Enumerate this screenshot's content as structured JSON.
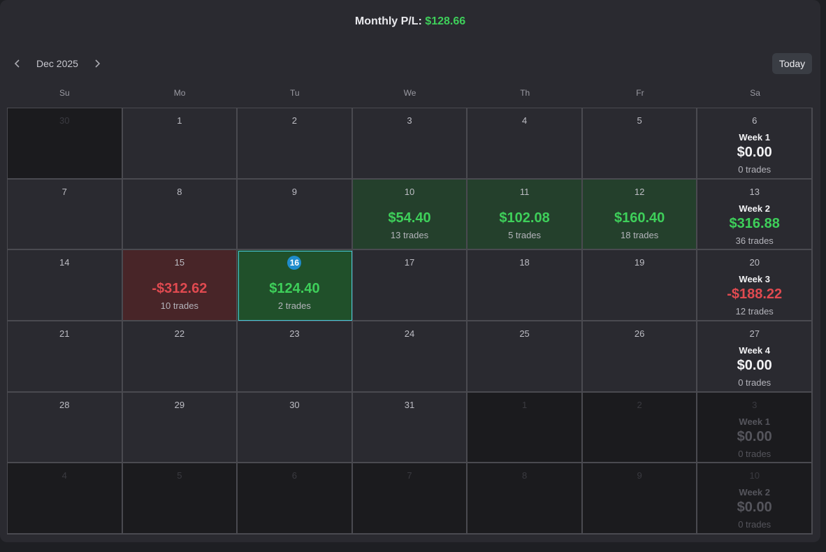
{
  "header": {
    "title_label": "Monthly P/L:",
    "title_amount": "$128.66"
  },
  "nav": {
    "month": "Dec 2025",
    "today_label": "Today"
  },
  "weekdays": [
    "Su",
    "Mo",
    "Tu",
    "We",
    "Th",
    "Fr",
    "Sa"
  ],
  "colors": {
    "profit": "#3ecf5a",
    "loss": "#e04a50",
    "today_accent": "#1f8ccc"
  },
  "cells": [
    {
      "day": "30",
      "other": true
    },
    {
      "day": "1"
    },
    {
      "day": "2"
    },
    {
      "day": "3"
    },
    {
      "day": "4"
    },
    {
      "day": "5"
    },
    {
      "day": "6",
      "week": {
        "label": "Week 1",
        "value": "$0.00",
        "trades": "0 trades",
        "tone": "neutral"
      }
    },
    {
      "day": "7"
    },
    {
      "day": "8"
    },
    {
      "day": "9"
    },
    {
      "day": "10",
      "pnl": "$54.40",
      "trades": "13 trades",
      "tone": "pos"
    },
    {
      "day": "11",
      "pnl": "$102.08",
      "trades": "5 trades",
      "tone": "pos"
    },
    {
      "day": "12",
      "pnl": "$160.40",
      "trades": "18 trades",
      "tone": "pos"
    },
    {
      "day": "13",
      "week": {
        "label": "Week 2",
        "value": "$316.88",
        "trades": "36 trades",
        "tone": "pos"
      }
    },
    {
      "day": "14"
    },
    {
      "day": "15",
      "pnl": "-$312.62",
      "trades": "10 trades",
      "tone": "neg"
    },
    {
      "day": "16",
      "pnl": "$124.40",
      "trades": "2 trades",
      "tone": "pos",
      "today": true
    },
    {
      "day": "17"
    },
    {
      "day": "18"
    },
    {
      "day": "19"
    },
    {
      "day": "20",
      "week": {
        "label": "Week 3",
        "value": "-$188.22",
        "trades": "12 trades",
        "tone": "neg"
      }
    },
    {
      "day": "21"
    },
    {
      "day": "22"
    },
    {
      "day": "23"
    },
    {
      "day": "24"
    },
    {
      "day": "25"
    },
    {
      "day": "26"
    },
    {
      "day": "27",
      "week": {
        "label": "Week 4",
        "value": "$0.00",
        "trades": "0 trades",
        "tone": "neutral"
      }
    },
    {
      "day": "28"
    },
    {
      "day": "29"
    },
    {
      "day": "30"
    },
    {
      "day": "31"
    },
    {
      "day": "1",
      "other": true
    },
    {
      "day": "2",
      "other": true
    },
    {
      "day": "3",
      "other": true,
      "week": {
        "label": "Week 1",
        "value": "$0.00",
        "trades": "0 trades",
        "tone": "neutral"
      }
    },
    {
      "day": "4",
      "other": true
    },
    {
      "day": "5",
      "other": true
    },
    {
      "day": "6",
      "other": true
    },
    {
      "day": "7",
      "other": true
    },
    {
      "day": "8",
      "other": true
    },
    {
      "day": "9",
      "other": true
    },
    {
      "day": "10",
      "other": true,
      "week": {
        "label": "Week 2",
        "value": "$0.00",
        "trades": "0 trades",
        "tone": "neutral"
      }
    }
  ]
}
